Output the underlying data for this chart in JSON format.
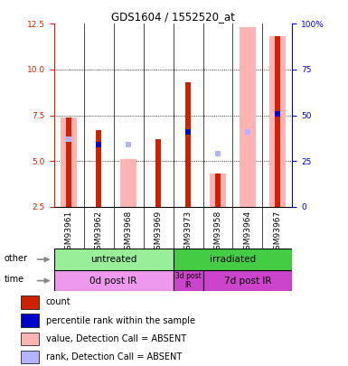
{
  "title": "GDS1604 / 1552520_at",
  "samples": [
    "GSM93961",
    "GSM93962",
    "GSM93968",
    "GSM93969",
    "GSM93973",
    "GSM93958",
    "GSM93964",
    "GSM93967"
  ],
  "count_values": [
    null,
    6.7,
    null,
    6.2,
    9.3,
    4.3,
    null,
    11.8
  ],
  "count_absent_values": [
    7.4,
    null,
    null,
    null,
    null,
    null,
    null,
    null
  ],
  "rank_values": [
    null,
    5.9,
    null,
    null,
    6.6,
    null,
    null,
    7.6
  ],
  "rank_absent_values": [
    6.2,
    null,
    5.9,
    null,
    null,
    5.4,
    6.6,
    null
  ],
  "value_absent_values": [
    7.4,
    null,
    5.1,
    null,
    null,
    4.3,
    12.3,
    11.8
  ],
  "ylim": [
    2.5,
    12.5
  ],
  "yticks_left": [
    2.5,
    5.0,
    7.5,
    10.0,
    12.5
  ],
  "ytick_labels_right": [
    "0",
    "25",
    "50",
    "75",
    "100%"
  ],
  "left_axis_color": "#cc2200",
  "right_axis_color": "#0000cc",
  "count_color": "#cc2200",
  "rank_color": "#0000cc",
  "value_absent_color": "#ffb3b3",
  "rank_absent_color": "#b3b3ff",
  "group1_label": "untreated",
  "group2_label": "irradiated",
  "group1_color": "#99ee99",
  "group2_color": "#44cc44",
  "time1_label": "0d post IR",
  "time2_label": "3d post\nIR",
  "time3_label": "7d post IR",
  "time_color_light": "#ee99ee",
  "time_color_dark": "#cc44cc",
  "xtick_gray": "#cccccc",
  "bg_color": "#ffffff",
  "tick_label_size": 6.5,
  "legend_fontsize": 7
}
